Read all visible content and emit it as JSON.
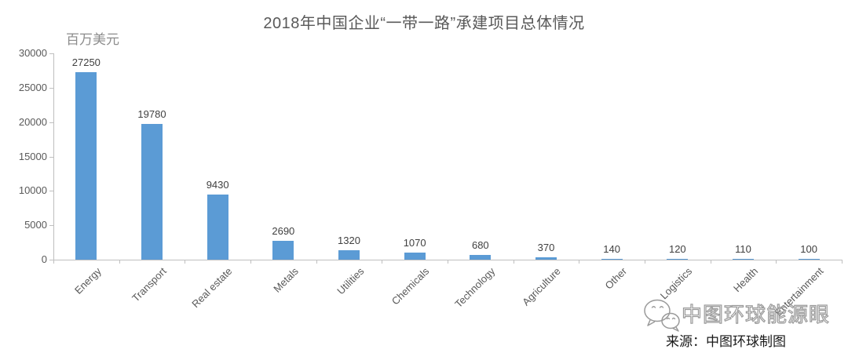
{
  "chart_data": {
    "type": "bar",
    "title": "2018年中国企业“一带一路”承建项目总体情况",
    "unit_label": "百万美元",
    "categories": [
      "Energy",
      "Transport",
      "Real estate",
      "Metals",
      "Utilities",
      "Chemicals",
      "Technology",
      "Agriculture",
      "Other",
      "Logistics",
      "Health",
      "Entertainment"
    ],
    "values": [
      27250,
      19780,
      9430,
      2690,
      1320,
      1070,
      680,
      370,
      140,
      120,
      110,
      100
    ],
    "data_labels": [
      27250,
      19780,
      9430,
      2690,
      1320,
      1070,
      680,
      370,
      140,
      120,
      110,
      100
    ],
    "ylim": [
      0,
      30000
    ],
    "yticks": [
      0,
      5000,
      10000,
      15000,
      20000,
      25000,
      30000
    ],
    "xlabel": "",
    "ylabel": "百万美元",
    "grid": false,
    "legend_position": "none",
    "bar_color": "#5B9BD5",
    "axis_color": "#BFBFBF",
    "tick_label_color": "#595959",
    "value_label_color": "#404040",
    "title_color": "#595959"
  },
  "watermark": {
    "brand": "中图环球能源眼",
    "source": "来源：中图环球制图",
    "icon": "wechat-icon"
  }
}
